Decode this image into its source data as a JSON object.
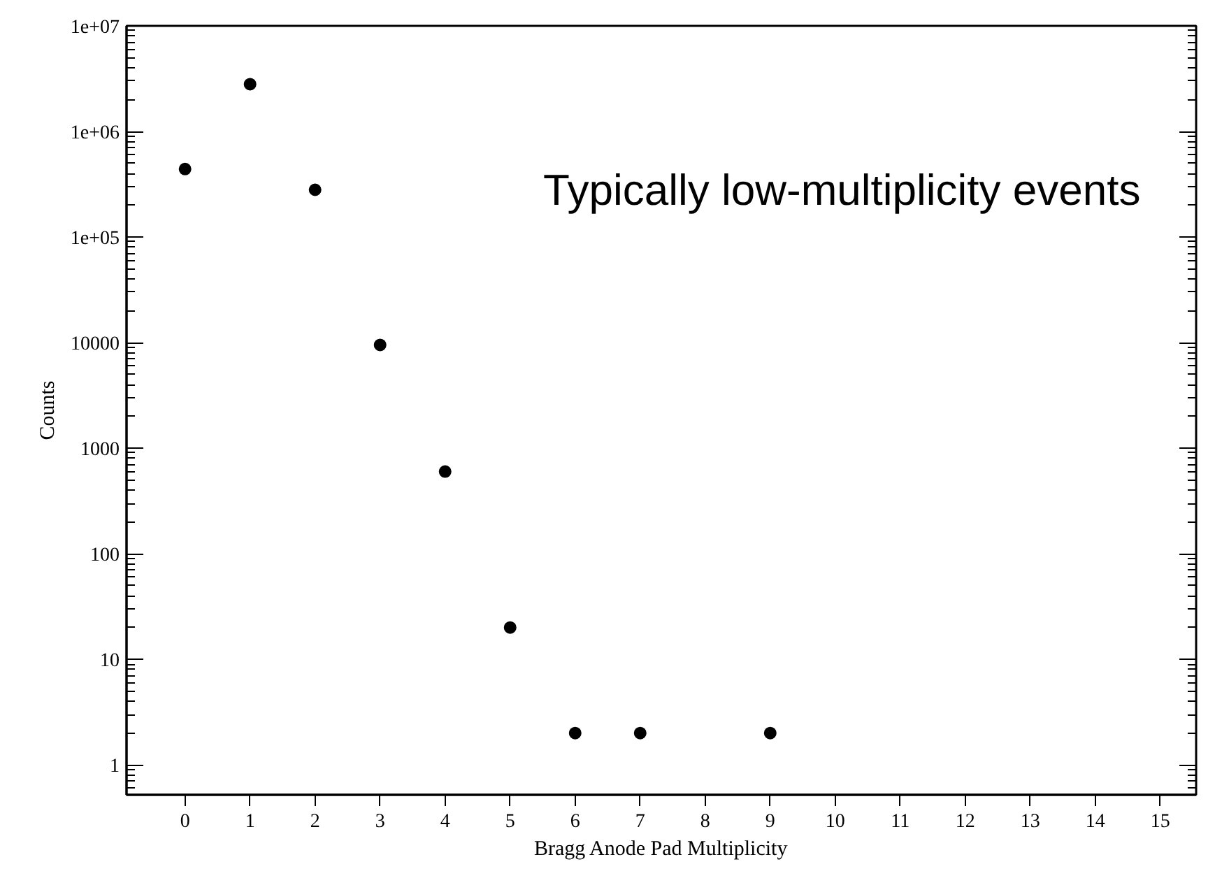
{
  "chart_data": {
    "type": "scatter",
    "xlabel": "Bragg Anode Pad Multiplicity",
    "ylabel": "Counts",
    "x": [
      0,
      1,
      2,
      3,
      4,
      5,
      6,
      7,
      9
    ],
    "series": [
      {
        "color": "#000000",
        "values": [
          440000,
          2800000,
          280000,
          9500,
          600,
          20,
          2,
          2,
          2
        ]
      }
    ],
    "marker": "circle",
    "log": "y",
    "grid": false,
    "xlim": [
      -0.9,
      15.55
    ],
    "xticks": [
      0,
      1,
      2,
      3,
      4,
      5,
      6,
      7,
      8,
      9,
      10,
      11,
      12,
      13,
      14,
      15
    ],
    "ylim": [
      0.52,
      10000000
    ],
    "yticks": [
      1,
      10,
      100,
      1000,
      10000,
      {
        "value": 100000,
        "label": "1e+05"
      },
      {
        "value": 1000000,
        "label": "1e+06"
      },
      {
        "value": 10000000,
        "label": "1e+07"
      }
    ],
    "annotations": [
      "Typically low-multiplicity events"
    ]
  }
}
